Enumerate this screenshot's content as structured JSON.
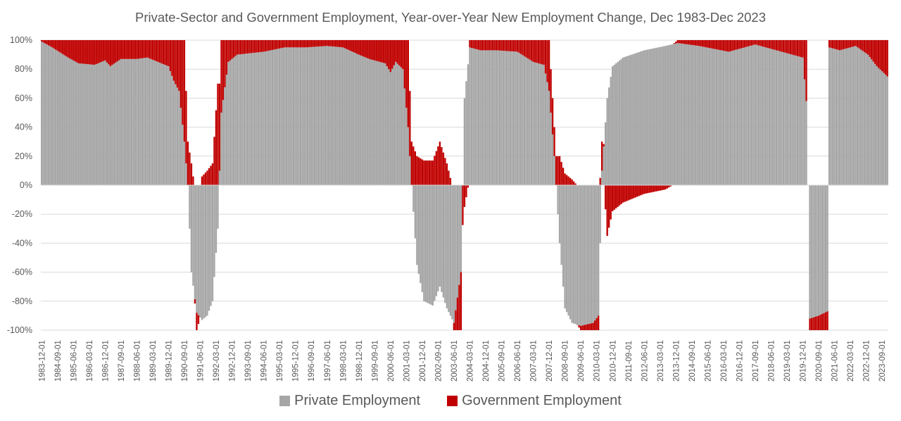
{
  "chart_data": {
    "type": "bar",
    "stacked": true,
    "title": "Private-Sector and Government Employment, Year-over-Year New Employment Change, Dec 1983-Dec 2023",
    "xlabel": "",
    "ylabel": "",
    "ylim": [
      -1.0,
      1.0
    ],
    "yticks": [
      "100%",
      "80%",
      "60%",
      "40%",
      "20%",
      "0%",
      "-20%",
      "-40%",
      "-60%",
      "-80%",
      "-100%"
    ],
    "yticks_values": [
      1.0,
      0.8,
      0.6,
      0.4,
      0.2,
      0.0,
      -0.2,
      -0.4,
      -0.6,
      -0.8,
      -1.0
    ],
    "grid": true,
    "legend_position": "bottom",
    "x_start": "1983-12-01",
    "x_end": "2023-12-01",
    "x_frequency": "monthly",
    "xtick_labels": [
      "1983-12-01",
      "1984-09-01",
      "1985-06-01",
      "1986-03-01",
      "1986-12-01",
      "1987-09-01",
      "1988-06-01",
      "1989-03-01",
      "1989-12-01",
      "1990-09-01",
      "1991-06-01",
      "1992-03-01",
      "1992-12-01",
      "1993-09-01",
      "1994-06-01",
      "1995-03-01",
      "1995-12-01",
      "1996-09-01",
      "1997-06-01",
      "1998-03-01",
      "1998-12-01",
      "1999-09-01",
      "2000-06-01",
      "2001-03-01",
      "2001-12-01",
      "2002-09-01",
      "2003-06-01",
      "2004-03-01",
      "2004-12-01",
      "2005-09-01",
      "2006-06-01",
      "2007-03-01",
      "2007-12-01",
      "2008-09-01",
      "2009-06-01",
      "2010-03-01",
      "2010-12-01",
      "2011-09-01",
      "2012-06-01",
      "2013-03-01",
      "2013-12-01",
      "2014-09-01",
      "2015-06-01",
      "2016-03-01",
      "2016-12-01",
      "2017-09-01",
      "2018-06-01",
      "2019-03-01",
      "2019-12-01",
      "2020-09-01",
      "2021-06-01",
      "2022-03-01",
      "2022-12-01",
      "2023-09-01"
    ],
    "series": [
      {
        "name": "Private Employment",
        "color": "#a6a6a6",
        "anchors": [
          [
            "1983-12-01",
            0.99
          ],
          [
            "1984-06-01",
            0.95
          ],
          [
            "1985-03-01",
            0.88
          ],
          [
            "1985-09-01",
            0.84
          ],
          [
            "1986-06-01",
            0.83
          ],
          [
            "1986-12-01",
            0.86
          ],
          [
            "1987-03-01",
            0.82
          ],
          [
            "1987-09-01",
            0.87
          ],
          [
            "1988-06-01",
            0.87
          ],
          [
            "1988-12-01",
            0.88
          ],
          [
            "1989-06-01",
            0.85
          ],
          [
            "1989-12-01",
            0.82
          ],
          [
            "1990-03-01",
            0.72
          ],
          [
            "1990-06-01",
            0.65
          ],
          [
            "1990-09-01",
            0.3
          ],
          [
            "1990-11-01",
            0.0
          ],
          [
            "1991-01-01",
            -0.6
          ],
          [
            "1991-04-01",
            -0.88
          ],
          [
            "1991-07-01",
            -0.93
          ],
          [
            "1991-10-01",
            -0.9
          ],
          [
            "1992-01-01",
            -0.8
          ],
          [
            "1992-04-01",
            -0.3
          ],
          [
            "1992-06-01",
            0.5
          ],
          [
            "1992-10-01",
            0.85
          ],
          [
            "1993-03-01",
            0.9
          ],
          [
            "1994-06-01",
            0.92
          ],
          [
            "1995-06-01",
            0.95
          ],
          [
            "1996-06-01",
            0.95
          ],
          [
            "1997-06-01",
            0.96
          ],
          [
            "1998-03-01",
            0.95
          ],
          [
            "1998-12-01",
            0.9
          ],
          [
            "1999-06-01",
            0.87
          ],
          [
            "2000-03-01",
            0.84
          ],
          [
            "2000-06-01",
            0.78
          ],
          [
            "2000-09-01",
            0.85
          ],
          [
            "2001-01-01",
            0.8
          ],
          [
            "2001-04-01",
            0.4
          ],
          [
            "2001-06-01",
            0.0
          ],
          [
            "2001-09-01",
            -0.55
          ],
          [
            "2002-01-01",
            -0.8
          ],
          [
            "2002-06-01",
            -0.83
          ],
          [
            "2002-10-01",
            -0.7
          ],
          [
            "2003-02-01",
            -0.85
          ],
          [
            "2003-06-01",
            -0.95
          ],
          [
            "2003-10-01",
            -0.6
          ],
          [
            "2003-12-01",
            0.6
          ],
          [
            "2004-03-01",
            0.95
          ],
          [
            "2004-09-01",
            0.93
          ],
          [
            "2005-06-01",
            0.93
          ],
          [
            "2006-06-01",
            0.92
          ],
          [
            "2007-03-01",
            0.85
          ],
          [
            "2007-09-01",
            0.83
          ],
          [
            "2007-12-01",
            0.65
          ],
          [
            "2008-03-01",
            0.2
          ],
          [
            "2008-06-01",
            -0.4
          ],
          [
            "2008-09-01",
            -0.85
          ],
          [
            "2009-01-01",
            -0.95
          ],
          [
            "2009-06-01",
            -0.97
          ],
          [
            "2010-01-01",
            -0.95
          ],
          [
            "2010-04-01",
            -0.9
          ],
          [
            "2010-06-01",
            0.1
          ],
          [
            "2010-09-01",
            0.6
          ],
          [
            "2010-12-01",
            0.82
          ],
          [
            "2011-06-01",
            0.88
          ],
          [
            "2012-06-01",
            0.93
          ],
          [
            "2013-06-01",
            0.96
          ],
          [
            "2014-01-01",
            0.98
          ],
          [
            "2015-01-01",
            0.96
          ],
          [
            "2016-06-01",
            0.92
          ],
          [
            "2017-09-01",
            0.97
          ],
          [
            "2018-06-01",
            0.94
          ],
          [
            "2019-06-01",
            0.9
          ],
          [
            "2019-12-01",
            0.88
          ],
          [
            "2020-02-01",
            0.58
          ],
          [
            "2020-03-01",
            0.0
          ],
          [
            "2020-04-01",
            -0.92
          ],
          [
            "2020-09-01",
            -0.9
          ],
          [
            "2021-02-01",
            -0.87
          ],
          [
            "2021-03-01",
            0.95
          ],
          [
            "2021-09-01",
            0.93
          ],
          [
            "2022-06-01",
            0.96
          ],
          [
            "2023-01-01",
            0.9
          ],
          [
            "2023-06-01",
            0.82
          ],
          [
            "2023-12-01",
            0.75
          ]
        ]
      },
      {
        "name": "Government Employment",
        "color": "#c00000",
        "anchors": [
          [
            "1983-12-01",
            0.01
          ],
          [
            "1984-06-01",
            0.05
          ],
          [
            "1985-03-01",
            0.12
          ],
          [
            "1985-09-01",
            0.16
          ],
          [
            "1986-06-01",
            0.17
          ],
          [
            "1986-12-01",
            0.14
          ],
          [
            "1987-03-01",
            0.18
          ],
          [
            "1987-09-01",
            0.13
          ],
          [
            "1988-06-01",
            0.13
          ],
          [
            "1988-12-01",
            0.12
          ],
          [
            "1989-06-01",
            0.15
          ],
          [
            "1989-12-01",
            0.18
          ],
          [
            "1990-03-01",
            0.28
          ],
          [
            "1990-06-01",
            0.35
          ],
          [
            "1990-09-01",
            0.7
          ],
          [
            "1990-11-01",
            0.3
          ],
          [
            "1991-01-01",
            0.15
          ],
          [
            "1991-04-01",
            -0.12
          ],
          [
            "1991-07-01",
            0.06
          ],
          [
            "1991-10-01",
            0.1
          ],
          [
            "1992-01-01",
            0.15
          ],
          [
            "1992-04-01",
            0.7
          ],
          [
            "1992-06-01",
            0.5
          ],
          [
            "1992-10-01",
            0.15
          ],
          [
            "1993-03-01",
            0.1
          ],
          [
            "1994-06-01",
            0.08
          ],
          [
            "1995-06-01",
            0.05
          ],
          [
            "1996-06-01",
            0.05
          ],
          [
            "1997-06-01",
            0.04
          ],
          [
            "1998-03-01",
            0.05
          ],
          [
            "1998-12-01",
            0.1
          ],
          [
            "1999-06-01",
            0.13
          ],
          [
            "2000-03-01",
            0.16
          ],
          [
            "2000-06-01",
            0.22
          ],
          [
            "2000-09-01",
            0.15
          ],
          [
            "2001-01-01",
            0.2
          ],
          [
            "2001-04-01",
            0.6
          ],
          [
            "2001-06-01",
            0.3
          ],
          [
            "2001-09-01",
            0.2
          ],
          [
            "2002-01-01",
            0.17
          ],
          [
            "2002-06-01",
            0.17
          ],
          [
            "2002-10-01",
            0.3
          ],
          [
            "2003-02-01",
            0.15
          ],
          [
            "2003-06-01",
            -0.05
          ],
          [
            "2003-10-01",
            -0.4
          ],
          [
            "2003-12-01",
            -0.15
          ],
          [
            "2004-03-01",
            0.05
          ],
          [
            "2004-09-01",
            0.07
          ],
          [
            "2005-06-01",
            0.07
          ],
          [
            "2006-06-01",
            0.08
          ],
          [
            "2007-03-01",
            0.15
          ],
          [
            "2007-09-01",
            0.17
          ],
          [
            "2007-12-01",
            0.35
          ],
          [
            "2008-03-01",
            0.2
          ],
          [
            "2008-06-01",
            0.2
          ],
          [
            "2008-09-01",
            0.08
          ],
          [
            "2009-01-01",
            0.04
          ],
          [
            "2009-06-01",
            -0.03
          ],
          [
            "2010-01-01",
            -0.05
          ],
          [
            "2010-04-01",
            -0.1
          ],
          [
            "2010-06-01",
            0.2
          ],
          [
            "2010-09-01",
            -0.35
          ],
          [
            "2010-12-01",
            -0.18
          ],
          [
            "2011-06-01",
            -0.12
          ],
          [
            "2012-06-01",
            -0.06
          ],
          [
            "2013-06-01",
            -0.03
          ],
          [
            "2014-01-01",
            0.02
          ],
          [
            "2015-01-01",
            0.04
          ],
          [
            "2016-06-01",
            0.08
          ],
          [
            "2017-09-01",
            0.03
          ],
          [
            "2018-06-01",
            0.06
          ],
          [
            "2019-06-01",
            0.1
          ],
          [
            "2019-12-01",
            0.12
          ],
          [
            "2020-02-01",
            0.42
          ],
          [
            "2020-03-01",
            0.0
          ],
          [
            "2020-04-01",
            -0.08
          ],
          [
            "2020-09-01",
            -0.1
          ],
          [
            "2021-02-01",
            -0.13
          ],
          [
            "2021-03-01",
            0.05
          ],
          [
            "2021-09-01",
            0.07
          ],
          [
            "2022-06-01",
            0.04
          ],
          [
            "2023-01-01",
            0.1
          ],
          [
            "2023-06-01",
            0.18
          ],
          [
            "2023-12-01",
            0.25
          ]
        ]
      }
    ]
  }
}
